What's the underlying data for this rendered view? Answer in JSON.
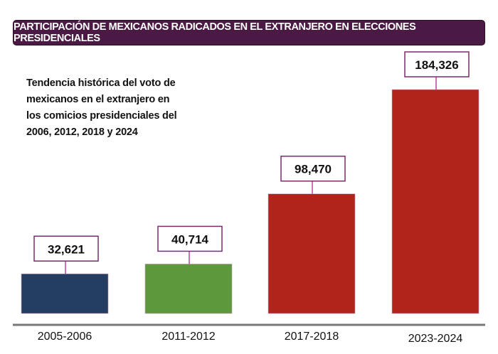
{
  "chart_data": {
    "type": "bar",
    "title": "PARTICIPACIÓN DE MEXICANOS RADICADOS EN EL EXTRANJERO EN ELECCIONES PRESIDENCIALES",
    "annotation": "Tendencia histórica del voto de mexicanos en el extranjero en los comicios presidenciales del 2006, 2012, 2018 y 2024",
    "categories": [
      "2005-2006",
      "2011-2012",
      "2017-2018",
      "2023-2024"
    ],
    "values": [
      32621,
      40714,
      98470,
      184326
    ],
    "value_labels": [
      "32,621",
      "40,714",
      "98,470",
      "184,326"
    ],
    "colors": [
      "#233e60",
      "#5e983c",
      "#b0241b",
      "#b0241b"
    ],
    "label_border_color": "#7a2a6e",
    "connector_color": "#d070b8",
    "grid": false,
    "xlabel": "",
    "ylabel": ""
  }
}
